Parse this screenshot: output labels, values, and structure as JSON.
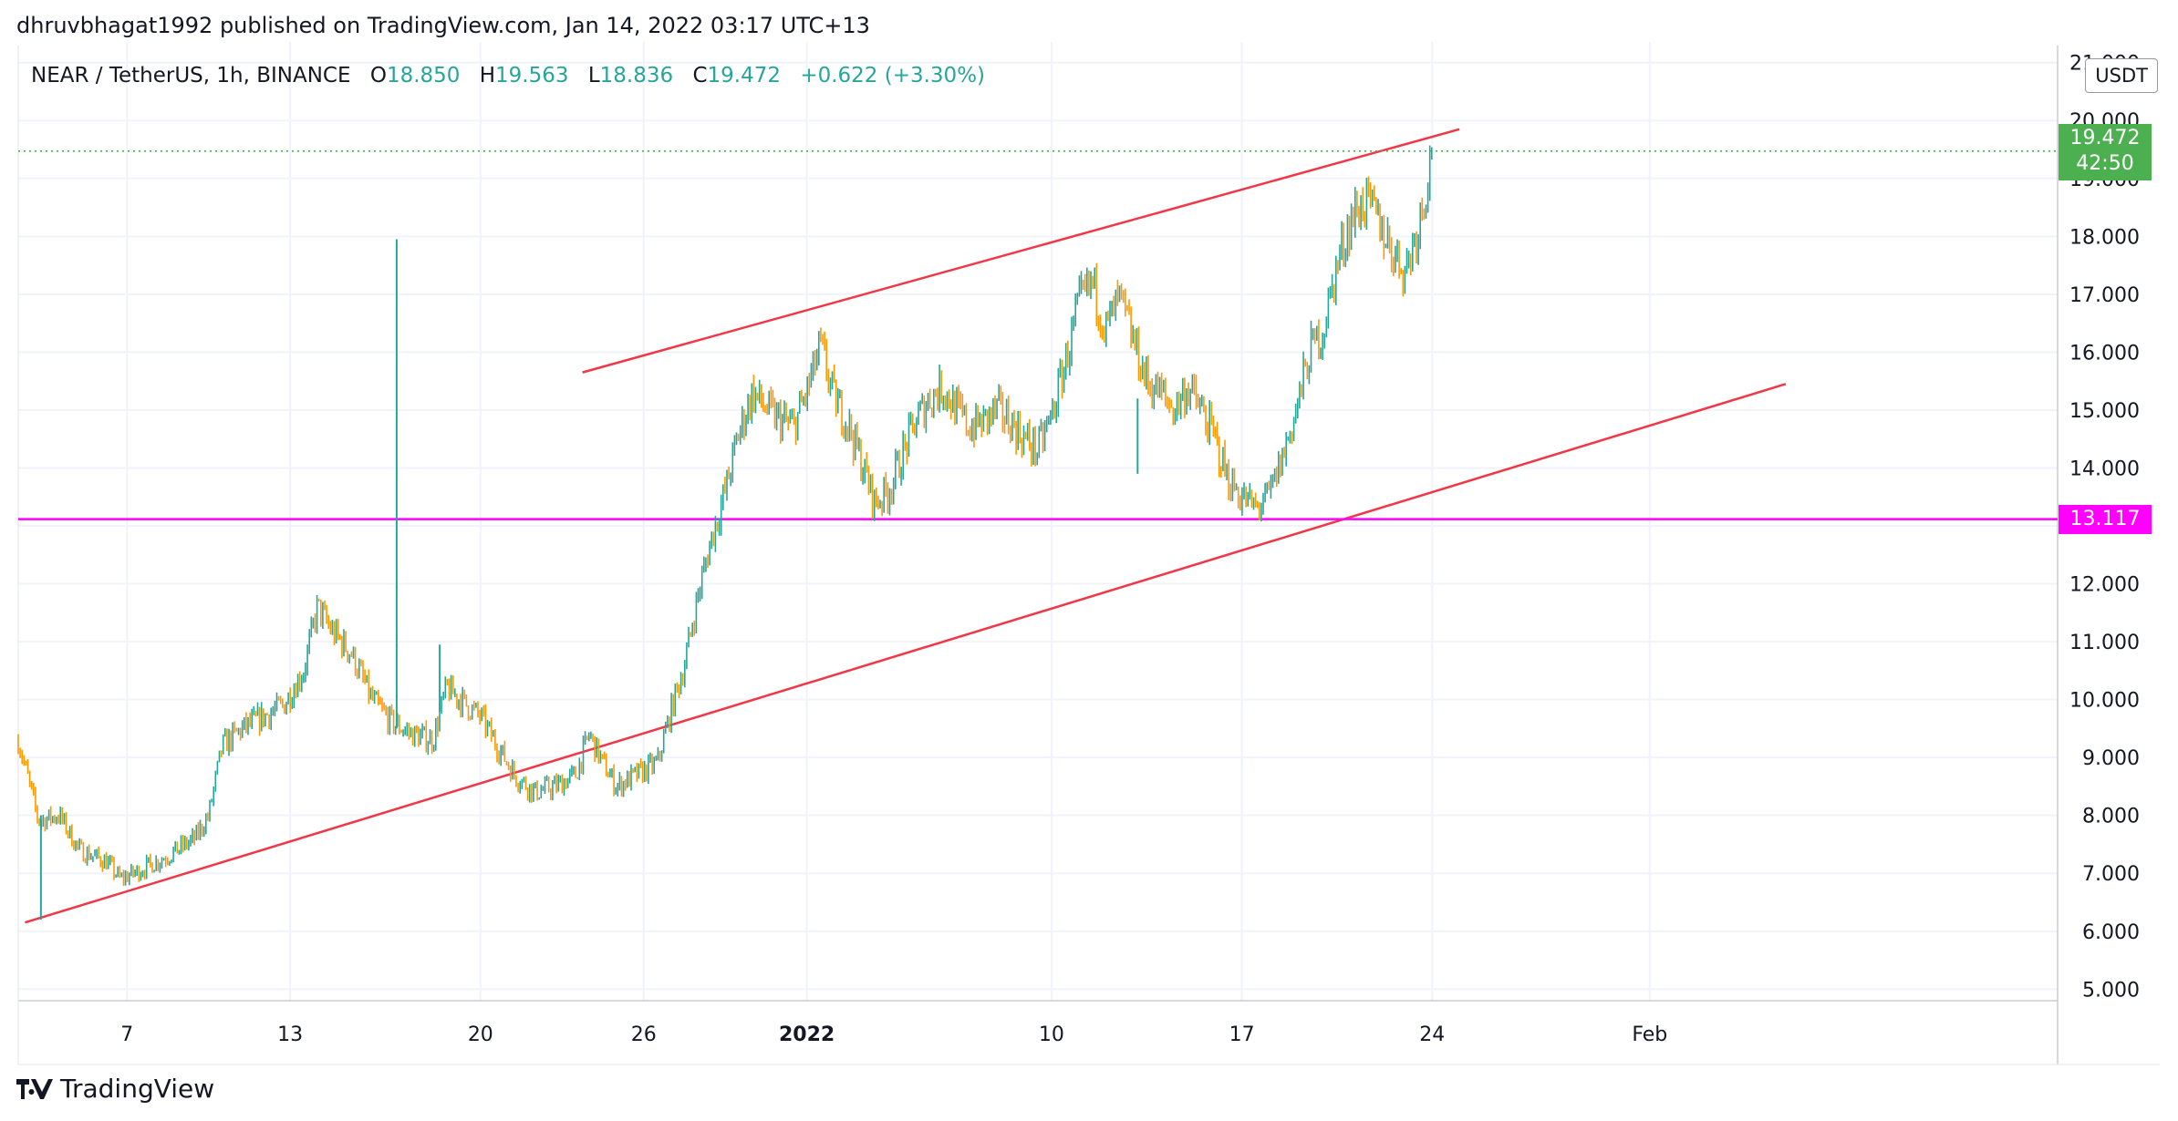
{
  "header": {
    "publisher": "dhruvbhagat1992 published on TradingView.com, Jan 14, 2022 03:17 UTC+13"
  },
  "legend": {
    "symbol": "NEAR / TetherUS, 1h, BINANCE",
    "open_label": "O",
    "open": "18.850",
    "high_label": "H",
    "high": "19.563",
    "low_label": "L",
    "low": "18.836",
    "close_label": "C",
    "close": "19.472",
    "change": "+0.622 (+3.30%)"
  },
  "price_axis": {
    "unit": "USDT",
    "current_price": "19.472",
    "countdown": "42:50",
    "level_price": "13.117"
  },
  "footer": {
    "brand": "TradingView"
  },
  "colors": {
    "up": "#26a69a",
    "down": "#ff9800",
    "trendline": "#f23645",
    "level": "#ff00ff",
    "current": "#4caf50",
    "grid": "#f0f3fa"
  },
  "chart_data": {
    "type": "candlestick",
    "y_ticks": [
      "21.000",
      "20.000",
      "19.000",
      "18.000",
      "17.000",
      "16.000",
      "15.000",
      "14.000",
      "13.000",
      "12.000",
      "11.000",
      "10.000",
      "9.000",
      "8.000",
      "7.000",
      "6.000",
      "5.000"
    ],
    "y_tick_values": [
      21,
      20,
      19,
      18,
      17,
      16,
      15,
      14,
      13,
      12,
      11,
      10,
      9,
      8,
      7,
      6,
      5
    ],
    "ylim": [
      4.8,
      21.2
    ],
    "x_ticks": [
      "7",
      "13",
      "20",
      "26",
      "2022",
      "10",
      "17",
      "24",
      "Feb"
    ],
    "x_tick_dates": [
      "2021-12-07",
      "2021-12-13",
      "2021-12-20",
      "2021-12-26",
      "2022-01-01",
      "2022-01-10",
      "2022-01-17",
      "2022-01-24",
      "2022-02-01"
    ],
    "xlim": [
      "2021-12-03T00:00",
      "2022-02-16T00:00"
    ],
    "price_path": [
      [
        "2021-12-03T00:00",
        9.3
      ],
      [
        "2021-12-03T18:00",
        7.9
      ],
      [
        "2021-12-04T12:00",
        8.0
      ],
      [
        "2021-12-05T06:00",
        7.4
      ],
      [
        "2021-12-06T06:00",
        7.2
      ],
      [
        "2021-12-06T18:00",
        6.9
      ],
      [
        "2021-12-07T06:00",
        7.0
      ],
      [
        "2021-12-08T12:00",
        7.3
      ],
      [
        "2021-12-09T12:00",
        7.6
      ],
      [
        "2021-12-10T00:00",
        8.0
      ],
      [
        "2021-12-10T12:00",
        9.2
      ],
      [
        "2021-12-11T06:00",
        9.5
      ],
      [
        "2021-12-12T00:00",
        9.7
      ],
      [
        "2021-12-12T18:00",
        9.9
      ],
      [
        "2021-12-13T12:00",
        10.5
      ],
      [
        "2021-12-14T00:00",
        11.6
      ],
      [
        "2021-12-14T12:00",
        11.2
      ],
      [
        "2021-12-15T06:00",
        10.8
      ],
      [
        "2021-12-16T00:00",
        10.0
      ],
      [
        "2021-12-16T18:00",
        9.6
      ],
      [
        "2021-12-17T12:00",
        9.4
      ],
      [
        "2021-12-18T06:00",
        9.3
      ],
      [
        "2021-12-18T18:00",
        10.2
      ],
      [
        "2021-12-19T06:00",
        10.0
      ],
      [
        "2021-12-20T00:00",
        9.7
      ],
      [
        "2021-12-20T18:00",
        9.1
      ],
      [
        "2021-12-21T06:00",
        8.7
      ],
      [
        "2021-12-22T00:00",
        8.4
      ],
      [
        "2021-12-22T18:00",
        8.5
      ],
      [
        "2021-12-23T12:00",
        8.7
      ],
      [
        "2021-12-24T00:00",
        9.4
      ],
      [
        "2021-12-24T12:00",
        8.9
      ],
      [
        "2021-12-25T00:00",
        8.5
      ],
      [
        "2021-12-25T18:00",
        8.7
      ],
      [
        "2021-12-26T12:00",
        8.9
      ],
      [
        "2021-12-27T00:00",
        9.8
      ],
      [
        "2021-12-27T12:00",
        10.6
      ],
      [
        "2021-12-28T00:00",
        11.8
      ],
      [
        "2021-12-28T12:00",
        12.8
      ],
      [
        "2021-12-29T00:00",
        13.6
      ],
      [
        "2021-12-29T12:00",
        14.6
      ],
      [
        "2021-12-30T00:00",
        15.3
      ],
      [
        "2021-12-30T18:00",
        14.9
      ],
      [
        "2021-12-31T12:00",
        14.7
      ],
      [
        "2022-01-01T00:00",
        15.3
      ],
      [
        "2022-01-01T12:00",
        16.1
      ],
      [
        "2022-01-02T00:00",
        15.2
      ],
      [
        "2022-01-02T12:00",
        14.8
      ],
      [
        "2022-01-03T00:00",
        14.1
      ],
      [
        "2022-01-03T12:00",
        13.4
      ],
      [
        "2022-01-04T00:00",
        13.6
      ],
      [
        "2022-01-04T12:00",
        14.2
      ],
      [
        "2022-01-05T00:00",
        14.8
      ],
      [
        "2022-01-05T12:00",
        15.2
      ],
      [
        "2022-01-06T00:00",
        15.4
      ],
      [
        "2022-01-06T12:00",
        15.0
      ],
      [
        "2022-01-07T00:00",
        14.7
      ],
      [
        "2022-01-07T12:00",
        14.8
      ],
      [
        "2022-01-08T00:00",
        15.0
      ],
      [
        "2022-01-08T12:00",
        14.8
      ],
      [
        "2022-01-09T00:00",
        14.5
      ],
      [
        "2022-01-09T12:00",
        14.3
      ],
      [
        "2022-01-10T00:00",
        14.9
      ],
      [
        "2022-01-10T12:00",
        15.8
      ],
      [
        "2022-01-11T00:00",
        16.8
      ],
      [
        "2022-01-11T12:00",
        17.2
      ],
      [
        "2022-01-12T00:00",
        16.4
      ],
      [
        "2022-01-12T12:00",
        16.9
      ],
      [
        "2022-01-13T00:00",
        16.2
      ],
      [
        "2022-01-13T12:00",
        15.5
      ],
      [
        "2022-01-14T00:00",
        15.3
      ],
      [
        "2022-01-14T12:00",
        15.0
      ],
      [
        "2022-01-15T00:00",
        15.4
      ],
      [
        "2022-01-15T12:00",
        15.0
      ],
      [
        "2022-01-16T00:00",
        14.5
      ],
      [
        "2022-01-16T12:00",
        13.8
      ],
      [
        "2022-01-17T00:00",
        13.5
      ],
      [
        "2022-01-17T12:00",
        13.3
      ],
      [
        "2022-01-18T00:00",
        13.5
      ],
      [
        "2022-01-18T12:00",
        14.2
      ],
      [
        "2022-01-19T00:00",
        15.0
      ],
      [
        "2022-01-19T12:00",
        16.0
      ],
      [
        "2022-01-20T00:00",
        16.4
      ],
      [
        "2022-01-20T12:00",
        17.5
      ],
      [
        "2022-01-21T00:00",
        18.3
      ],
      [
        "2022-01-21T12:00",
        18.6
      ],
      [
        "2022-01-22T00:00",
        18.3
      ],
      [
        "2022-01-22T12:00",
        17.8
      ],
      [
        "2022-01-23T00:00",
        17.4
      ],
      [
        "2022-01-23T12:00",
        18.2
      ],
      [
        "2022-01-24T00:00",
        19.47
      ]
    ],
    "spikes": [
      {
        "time": "2021-12-16T22:00",
        "high": 17.95,
        "low": 9.5
      },
      {
        "time": "2021-12-18T12:00",
        "high": 10.95,
        "low": 9.8
      },
      {
        "time": "2021-12-03T20:00",
        "high": 8.0,
        "low": 6.2
      },
      {
        "time": "2022-01-13T04:00",
        "high": 15.2,
        "low": 13.9
      }
    ],
    "trendlines": [
      {
        "from": [
          "2021-12-03T06:00",
          6.15
        ],
        "to": [
          "2022-02-06T00:00",
          15.45
        ],
        "color": "#f23645"
      },
      {
        "from": [
          "2021-12-23T18:00",
          15.65
        ],
        "to": [
          "2022-01-25T00:00",
          19.85
        ],
        "color": "#f23645"
      }
    ],
    "horizontal_level": 13.117,
    "current_price": 19.472
  }
}
